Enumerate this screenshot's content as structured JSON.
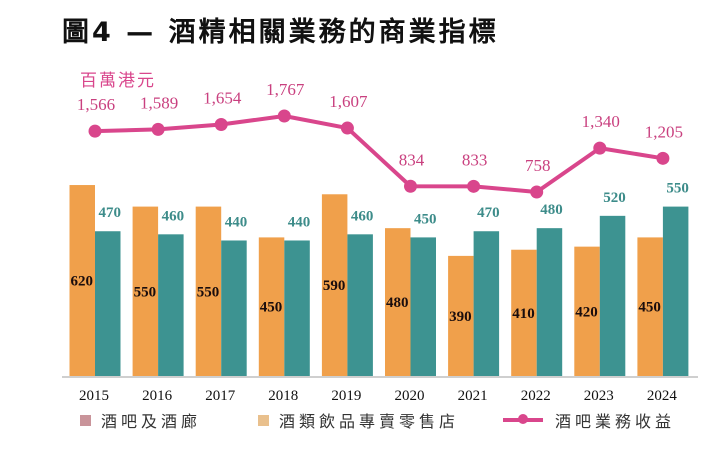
{
  "chart_data": {
    "type": "bar",
    "title": "圖4 — 酒精相關業務的商業指標",
    "unit_label": "百萬港元",
    "categories": [
      "2015",
      "2016",
      "2017",
      "2018",
      "2019",
      "2020",
      "2021",
      "2022",
      "2023",
      "2024"
    ],
    "series": [
      {
        "name": "酒類飲品專賣零售店",
        "type": "bar",
        "color": "#f0a04b",
        "values": [
          620,
          550,
          550,
          450,
          590,
          480,
          390,
          410,
          420,
          450
        ]
      },
      {
        "name": "酒吧及酒廊",
        "type": "bar",
        "color": "#3d9391",
        "values": [
          470,
          460,
          440,
          440,
          460,
          450,
          470,
          480,
          520,
          550
        ]
      },
      {
        "name": "酒吧業務收益",
        "type": "line",
        "color": "#d9468c",
        "values": [
          1566,
          1589,
          1654,
          1767,
          1607,
          834,
          833,
          758,
          1340,
          1205
        ],
        "labels": [
          "1,566",
          "1,589",
          "1,654",
          "1,767",
          "1,607",
          "834",
          "833",
          "758",
          "1,340",
          "1,205"
        ]
      }
    ],
    "xlabel": "",
    "ylabel": "百萬港元",
    "grid": false,
    "legend_position": "bottom",
    "legend": [
      {
        "label": "酒吧及酒廊",
        "swatch_color": "#c9949a"
      },
      {
        "label": "酒類飲品專賣零售店",
        "swatch_color": "#e9c08d"
      },
      {
        "label": "酒吧業務收益",
        "swatch_color": "#d9468c"
      }
    ]
  }
}
